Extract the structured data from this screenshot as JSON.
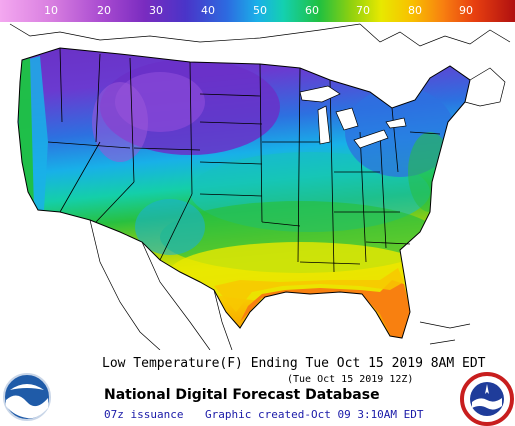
{
  "legend": {
    "ticks": [
      "10",
      "20",
      "30",
      "40",
      "50",
      "60",
      "70",
      "80",
      "90"
    ],
    "colors": {
      "low": "#d87ee0",
      "cold": "#7a2cc0",
      "cool": "#2d6ae0",
      "mild": "#14d0b0",
      "warm": "#20c040",
      "hot": "#e8e800",
      "veryhot": "#f88010"
    }
  },
  "map": {
    "title": "Low Temperature(F) Ending Tue Oct 15 2019  8AM EDT",
    "valid_time": "(Tue Oct 15 2019 12Z)",
    "product": "National Digital Forecast Database",
    "issuance": "07z issuance",
    "created": "Graphic created-Oct 09  3:10AM EDT"
  },
  "logos": {
    "left": "NOAA",
    "right": "NATIONAL WEATHER SERVICE"
  }
}
